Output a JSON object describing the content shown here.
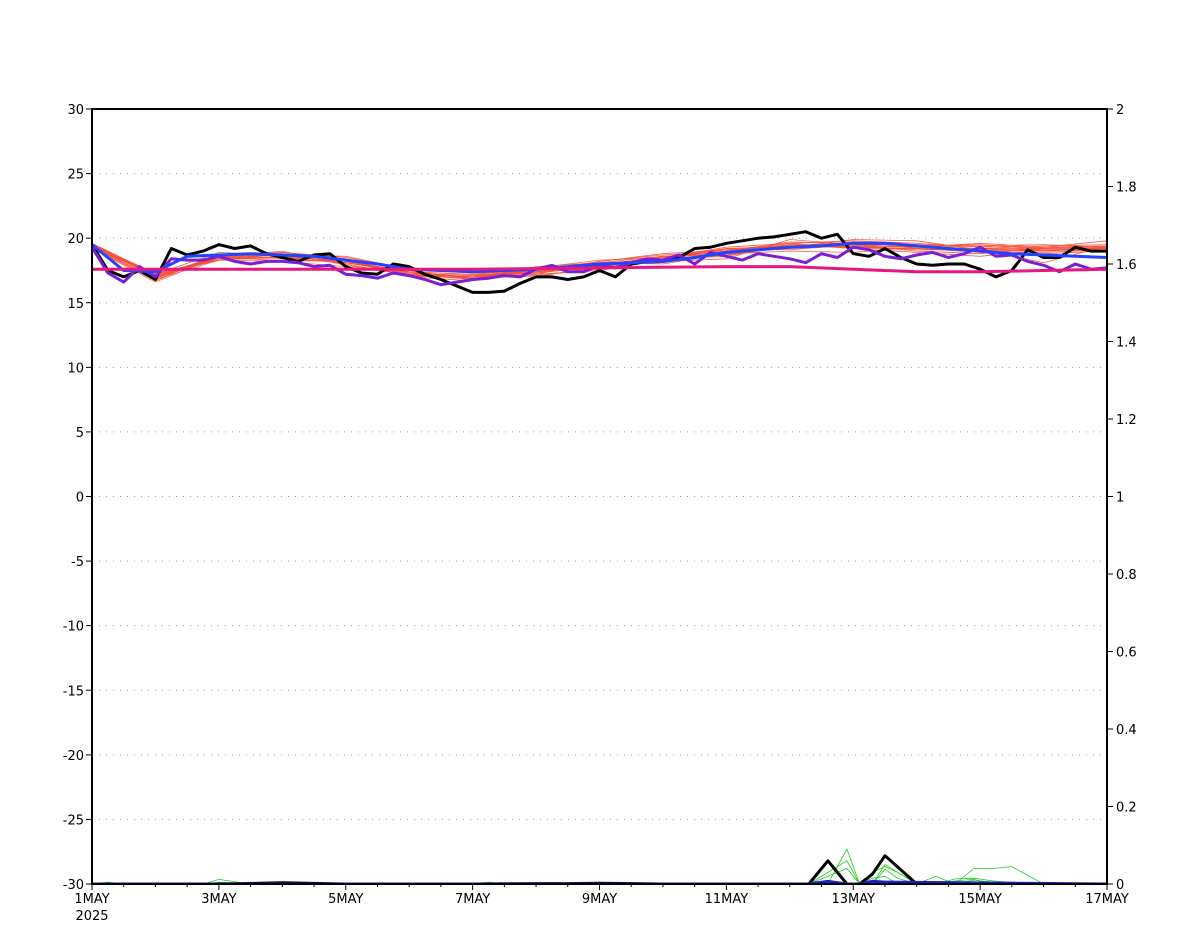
{
  "chart_data": {
    "type": "line",
    "title": "",
    "xlabel": "",
    "ylabel": "",
    "y2label": "",
    "x_start_date": "2025-05-01",
    "x_range_days": [
      0,
      16
    ],
    "ylim": [
      -30,
      30
    ],
    "y2lim": [
      0,
      2
    ],
    "grid": "horizontal dotted",
    "x_ticks": [
      {
        "day": 0,
        "label": "1MAY",
        "sublabel": "2025"
      },
      {
        "day": 2,
        "label": "3MAY",
        "sublabel": ""
      },
      {
        "day": 4,
        "label": "5MAY",
        "sublabel": ""
      },
      {
        "day": 6,
        "label": "7MAY",
        "sublabel": ""
      },
      {
        "day": 8,
        "label": "9MAY",
        "sublabel": ""
      },
      {
        "day": 10,
        "label": "11MAY",
        "sublabel": ""
      },
      {
        "day": 12,
        "label": "13MAY",
        "sublabel": ""
      },
      {
        "day": 14,
        "label": "15MAY",
        "sublabel": ""
      },
      {
        "day": 16,
        "label": "17MAY",
        "sublabel": ""
      }
    ],
    "y_ticks": [
      "30",
      "25",
      "20",
      "15",
      "10",
      "5",
      "0",
      "-5",
      "-10",
      "-15",
      "-20",
      "-25",
      "-30"
    ],
    "y2_ticks": [
      "2",
      "1.8",
      "1.6",
      "1.4",
      "1.2",
      "1",
      "0.8",
      "0.6",
      "0.4",
      "0.2",
      "0"
    ],
    "series": [
      {
        "color": "#000000",
        "axis": "left",
        "width": 3,
        "x": [
          0,
          0.25,
          0.5,
          0.75,
          1,
          1.25,
          1.5,
          1.75,
          2,
          2.25,
          2.5,
          2.75,
          3,
          3.25,
          3.5,
          3.75,
          4,
          4.25,
          4.5,
          4.75,
          5,
          5.25,
          5.5,
          5.75,
          6,
          6.25,
          6.5,
          6.75,
          7,
          7.25,
          7.5,
          7.75,
          8,
          8.25,
          8.5,
          8.75,
          9,
          9.25,
          9.5,
          9.75,
          10,
          10.25,
          10.5,
          10.75,
          11,
          11.25,
          11.5,
          11.75,
          12,
          12.25,
          12.5,
          12.75,
          13,
          13.25,
          13.5,
          13.75,
          14,
          14.25,
          14.5,
          14.75,
          15,
          15.25,
          15.5,
          15.75,
          16
        ],
        "y": [
          19.5,
          17.5,
          17.0,
          17.5,
          16.8,
          19.2,
          18.7,
          19.0,
          19.5,
          19.2,
          19.4,
          18.8,
          18.5,
          18.2,
          18.7,
          18.8,
          17.8,
          17.3,
          17.2,
          18.0,
          17.8,
          17.2,
          16.8,
          16.3,
          15.8,
          15.8,
          15.9,
          16.5,
          17.0,
          17.0,
          16.8,
          17.0,
          17.5,
          17.0,
          18.0,
          18.2,
          18.2,
          18.5,
          19.2,
          19.3,
          19.6,
          19.8,
          20.0,
          20.1,
          20.3,
          20.5,
          20.0,
          20.3,
          18.8,
          18.6,
          19.2,
          18.5,
          18.0,
          17.9,
          18.0,
          18.0,
          17.6,
          17.0,
          17.5,
          19.1,
          18.5,
          18.5,
          19.3,
          19.0,
          19.0
        ]
      },
      {
        "color": "#7a1fd6",
        "axis": "left",
        "width": 3,
        "x": [
          0,
          0.25,
          0.5,
          0.75,
          1,
          1.25,
          1.5,
          1.75,
          2,
          2.25,
          2.5,
          2.75,
          3,
          3.25,
          3.5,
          3.75,
          4,
          4.25,
          4.5,
          4.75,
          5,
          5.25,
          5.5,
          5.75,
          6,
          6.25,
          6.5,
          6.75,
          7,
          7.25,
          7.5,
          7.75,
          8,
          8.25,
          8.5,
          8.75,
          9,
          9.25,
          9.5,
          9.75,
          10,
          10.25,
          10.5,
          10.75,
          11,
          11.25,
          11.5,
          11.75,
          12,
          12.25,
          12.5,
          12.75,
          13,
          13.25,
          13.5,
          13.75,
          14,
          14.25,
          14.5,
          14.75,
          15,
          15.25,
          15.5,
          15.75,
          16
        ],
        "y": [
          19.3,
          17.3,
          16.6,
          17.8,
          17.0,
          18.4,
          18.3,
          18.3,
          18.6,
          18.2,
          18.0,
          18.2,
          18.2,
          18.1,
          17.8,
          17.9,
          17.2,
          17.1,
          16.9,
          17.3,
          17.1,
          16.8,
          16.4,
          16.6,
          16.8,
          16.9,
          17.1,
          17.0,
          17.6,
          17.9,
          17.4,
          17.4,
          17.9,
          17.7,
          18.1,
          18.4,
          18.3,
          18.7,
          18.0,
          18.9,
          18.6,
          18.3,
          18.8,
          18.6,
          18.4,
          18.1,
          18.8,
          18.5,
          19.3,
          19.1,
          18.6,
          18.4,
          18.7,
          18.9,
          18.5,
          18.8,
          19.3,
          18.6,
          18.7,
          18.2,
          17.9,
          17.4,
          18.0,
          17.6,
          17.7
        ]
      },
      {
        "color": "#2244ff",
        "axis": "left",
        "width": 3,
        "x": [
          0,
          0.5,
          1,
          1.5,
          2,
          2.5,
          3,
          3.5,
          4,
          4.5,
          5,
          5.5,
          6,
          6.5,
          7,
          7.5,
          8,
          8.5,
          9,
          9.5,
          10,
          10.5,
          11,
          11.5,
          12,
          12.5,
          13,
          13.5,
          14,
          14.5,
          15,
          15.5,
          16
        ],
        "y": [
          19.5,
          17.5,
          17.4,
          18.6,
          18.7,
          18.8,
          18.7,
          18.6,
          18.3,
          18.0,
          17.6,
          17.5,
          17.4,
          17.5,
          17.6,
          17.8,
          18.0,
          18.1,
          18.2,
          18.5,
          18.9,
          19.1,
          19.3,
          19.4,
          19.6,
          19.6,
          19.4,
          19.2,
          19.0,
          18.8,
          18.7,
          18.6,
          18.5
        ]
      },
      {
        "color": "#e8177f",
        "axis": "left",
        "width": 3,
        "x": [
          0,
          2,
          4,
          6,
          8,
          10,
          11,
          12,
          13,
          14,
          15,
          16
        ],
        "y": [
          17.6,
          17.6,
          17.6,
          17.6,
          17.7,
          17.8,
          17.8,
          17.6,
          17.4,
          17.4,
          17.5,
          17.6
        ]
      },
      {
        "color": "#000000",
        "axis": "right",
        "width": 3,
        "x": [
          0,
          1,
          2,
          3,
          4,
          5,
          6,
          7,
          7.5,
          8,
          9,
          10,
          11,
          11.3,
          11.6,
          11.9,
          12.1,
          12.3,
          12.5,
          13,
          14,
          15,
          16
        ],
        "y": [
          0,
          0,
          0,
          0.003,
          0,
          0,
          0,
          0.001,
          0.001,
          0.002,
          0,
          0,
          0,
          0,
          0.06,
          0,
          0,
          0.025,
          0.073,
          0,
          0,
          0,
          0
        ]
      },
      {
        "color": "#1c1cc8",
        "axis": "right",
        "width": 3,
        "x": [
          0,
          11.3,
          11.6,
          11.9,
          12.1,
          12.3,
          12.5,
          16
        ],
        "y": [
          0,
          0,
          0.007,
          0,
          0,
          0.007,
          0.005,
          0
        ]
      }
    ],
    "ensemble_temperature": {
      "color": "#f4503a",
      "axis": "left",
      "x": [
        0,
        1,
        2,
        3,
        4,
        5,
        6,
        7,
        8,
        9,
        10,
        11,
        12,
        13,
        14,
        15,
        16
      ],
      "members": [
        [
          19.6,
          17.2,
          18.9,
          18.7,
          18.1,
          17.4,
          16.9,
          17.3,
          18.0,
          18.4,
          19.0,
          19.6,
          19.2,
          18.9,
          18.6,
          19.1,
          19.0
        ],
        [
          19.4,
          16.8,
          18.3,
          18.2,
          18.3,
          17.0,
          16.7,
          17.6,
          17.6,
          18.5,
          19.1,
          19.4,
          19.7,
          19.5,
          19.4,
          19.1,
          19.2
        ],
        [
          19.3,
          17.1,
          18.5,
          19.0,
          17.9,
          17.2,
          16.8,
          17.8,
          18.1,
          18.0,
          18.8,
          19.0,
          18.9,
          19.3,
          19.6,
          19.3,
          19.4
        ],
        [
          19.5,
          17.0,
          18.4,
          18.9,
          18.4,
          17.1,
          17.1,
          17.0,
          17.8,
          18.2,
          18.4,
          19.9,
          19.5,
          19.0,
          18.8,
          19.3,
          19.8
        ],
        [
          19.2,
          16.6,
          18.6,
          18.7,
          18.6,
          17.6,
          17.4,
          17.2,
          17.5,
          18.3,
          18.7,
          19.3,
          19.9,
          19.8,
          19.1,
          18.1,
          19.4
        ],
        [
          19.6,
          16.9,
          18.5,
          18.5,
          18.3,
          17.3,
          17.0,
          17.5,
          18.2,
          18.8,
          19.1,
          19.5,
          19.3,
          19.2,
          19.2,
          19.0,
          19.3
        ],
        [
          19.5,
          17.3,
          18.3,
          18.8,
          18.0,
          17.1,
          16.9,
          17.4,
          18.0,
          18.5,
          19.2,
          19.4,
          19.6,
          19.4,
          19.0,
          19.2,
          19.3
        ],
        [
          19.3,
          16.7,
          18.8,
          18.6,
          18.2,
          17.4,
          17.2,
          17.1,
          17.7,
          18.2,
          19.0,
          19.2,
          19.4,
          19.1,
          19.1,
          19.1,
          19.1
        ],
        [
          19.4,
          17.2,
          18.4,
          18.4,
          18.1,
          17.3,
          17.0,
          17.6,
          17.9,
          18.6,
          18.9,
          19.3,
          19.5,
          19.3,
          19.2,
          19.3,
          19.2
        ],
        [
          19.5,
          17.0,
          18.7,
          18.9,
          18.5,
          17.6,
          17.3,
          17.3,
          17.8,
          18.4,
          18.6,
          19.5,
          19.2,
          19.2,
          18.9,
          18.8,
          19.0
        ],
        [
          19.2,
          16.8,
          18.6,
          18.2,
          17.8,
          17.2,
          17.0,
          17.7,
          18.3,
          18.5,
          19.3,
          19.6,
          19.8,
          19.6,
          19.3,
          19.4,
          19.5
        ],
        [
          19.6,
          17.1,
          18.4,
          18.7,
          18.4,
          17.0,
          17.1,
          17.4,
          17.9,
          18.1,
          18.8,
          19.4,
          19.3,
          19.2,
          19.0,
          18.9,
          19.1
        ],
        [
          19.4,
          17.2,
          18.5,
          18.5,
          18.1,
          17.5,
          16.8,
          17.2,
          18.2,
          18.7,
          19.0,
          19.7,
          19.6,
          19.4,
          19.5,
          19.2,
          19.4
        ],
        [
          19.3,
          16.9,
          18.7,
          18.8,
          18.3,
          17.2,
          17.2,
          17.5,
          17.6,
          18.3,
          19.2,
          19.1,
          19.5,
          19.5,
          19.1,
          19.0,
          19.2
        ],
        [
          19.5,
          17.1,
          18.3,
          18.6,
          18.2,
          17.4,
          16.9,
          17.6,
          18.1,
          18.6,
          18.7,
          19.5,
          19.4,
          19.3,
          19.4,
          19.5,
          19.3
        ],
        [
          19.4,
          17.0,
          18.5,
          18.7,
          18.1,
          17.3,
          17.0,
          17.4,
          17.9,
          18.4,
          19.0,
          19.4,
          19.5,
          19.3,
          19.2,
          19.2,
          19.2
        ]
      ]
    },
    "ensemble_precip": {
      "color": "#22cc22",
      "axis": "right",
      "x": [
        0,
        0.25,
        0.5,
        1,
        1.5,
        1.75,
        2,
        2.5,
        3,
        3.25,
        3.5,
        4,
        4.5,
        5,
        5.5,
        6,
        6.25,
        6.5,
        7,
        7.5,
        8,
        9,
        10,
        11,
        11.3,
        11.6,
        11.9,
        12.1,
        12.3,
        12.5,
        12.7,
        13,
        13.3,
        13.6,
        13.9,
        14.2,
        14.5,
        15,
        15.5,
        16
      ],
      "members": [
        [
          0,
          0.005,
          0,
          0,
          0,
          0,
          0.012,
          0,
          0,
          0,
          0.002,
          0,
          0,
          0,
          0,
          0,
          0.005,
          0,
          0,
          0,
          0,
          0.001,
          0,
          0,
          0,
          0,
          0,
          0,
          0.03,
          0.045,
          0.03,
          0,
          0,
          0.013,
          0.015,
          0.008,
          0.004,
          0,
          0,
          0
        ],
        [
          0,
          0,
          0,
          0,
          0,
          0,
          0.003,
          0,
          0,
          0.002,
          0,
          0,
          0,
          0,
          0,
          0,
          0.002,
          0,
          0,
          0,
          0,
          0,
          0,
          0,
          0,
          0,
          0.09,
          0,
          0,
          0.038,
          0.015,
          0,
          0,
          0.008,
          0.012,
          0,
          0,
          0,
          0,
          0
        ],
        [
          0,
          0.002,
          0,
          0,
          0,
          0,
          0,
          0,
          0,
          0.004,
          0,
          0,
          0,
          0,
          0,
          0,
          0,
          0,
          0,
          0,
          0,
          0,
          0,
          0,
          0,
          0.03,
          0.06,
          0,
          0.015,
          0.02,
          0,
          0,
          0.02,
          0,
          0.04,
          0.04,
          0.045,
          0,
          0,
          0
        ],
        [
          0,
          0,
          0,
          0,
          0,
          0,
          0.005,
          0,
          0,
          0,
          0,
          0,
          0,
          0,
          0,
          0,
          0.004,
          0,
          0,
          0,
          0,
          0,
          0,
          0,
          0,
          0.02,
          0.04,
          0,
          0,
          0.05,
          0.03,
          0,
          0.005,
          0,
          0.01,
          0.005,
          0,
          0,
          0,
          0
        ]
      ]
    }
  }
}
